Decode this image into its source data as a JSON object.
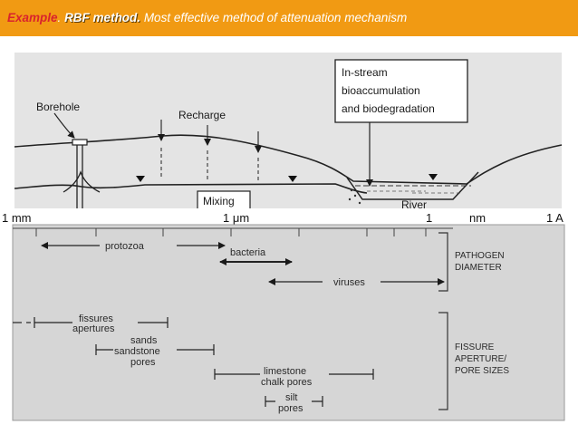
{
  "header": {
    "lead": "Example",
    "dot": ".",
    "method": "RBF method.",
    "rest": " Most effective method  of  attenuation mechanism"
  },
  "diagram": {
    "borehole": "Borehole",
    "recharge": "Recharge",
    "instream_1": "In-stream",
    "instream_2": "bioaccumulation",
    "instream_3": "and biodegradation",
    "mixing": "Mixing",
    "river": "River"
  },
  "scale": {
    "mm": "1 mm",
    "um": "1 μm",
    "one": "1",
    "nm": "nm",
    "angstrom": "1 A"
  },
  "chart": {
    "protozoa": "protozoa",
    "bacteria": "bacteria",
    "viruses": "viruses",
    "pathogen_1": "PATHOGEN",
    "pathogen_2": "DIAMETER",
    "fissures_1": "fissures",
    "fissures_2": "apertures",
    "sands_1": "sands",
    "sands_2": "sandstone",
    "sands_3": "pores",
    "limestone_1": "limestone",
    "limestone_2": "chalk pores",
    "silt_1": "silt",
    "silt_2": "pores",
    "fissure_1": "FISSURE",
    "fissure_2": "APERTURE/",
    "fissure_3": "PORE SIZES"
  },
  "colors": {
    "header_bg": "#f19a13",
    "lead_red": "#d9232d",
    "panel_bg": "#d6d6d6"
  }
}
